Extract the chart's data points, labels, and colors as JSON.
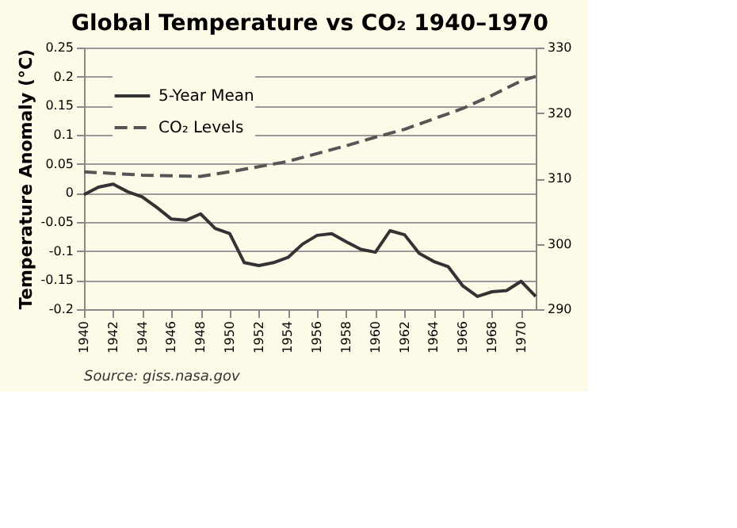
{
  "chart_data": {
    "type": "line",
    "title": "Global Temperature vs CO₂ 1940–1970",
    "ylabel": "Temperature Anomaly (°C)",
    "x": [
      1940,
      1941,
      1942,
      1943,
      1944,
      1945,
      1946,
      1947,
      1948,
      1949,
      1950,
      1951,
      1952,
      1953,
      1954,
      1955,
      1956,
      1957,
      1958,
      1959,
      1960,
      1961,
      1962,
      1963,
      1964,
      1965,
      1966,
      1967,
      1968,
      1969,
      1970,
      1971
    ],
    "series": [
      {
        "name": "5-Year Mean",
        "color": "#333333",
        "line_style": "solid",
        "values": [
          -0.003,
          0.01,
          0.015,
          0.002,
          -0.007,
          -0.025,
          -0.045,
          -0.047,
          -0.036,
          -0.061,
          -0.07,
          -0.12,
          -0.125,
          -0.12,
          -0.111,
          -0.088,
          -0.073,
          -0.07,
          -0.084,
          -0.097,
          -0.102,
          -0.065,
          -0.072,
          -0.104,
          -0.118,
          -0.127,
          -0.16,
          -0.178,
          -0.17,
          -0.168,
          -0.152,
          -0.178
        ]
      },
      {
        "name": "CO₂ Levels",
        "color": "#555555",
        "line_style": "dashed",
        "axis": "y2",
        "x": [
          1940,
          1944,
          1948,
          1950,
          1954,
          1958,
          1960,
          1962,
          1964,
          1966,
          1968,
          1970,
          1971
        ],
        "values": [
          311,
          310.5,
          310.3,
          311,
          312.6,
          315,
          316.3,
          317.5,
          319.1,
          320.7,
          322.7,
          324.9,
          325.6
        ]
      }
    ],
    "xlim": [
      1940,
      1971
    ],
    "xticks": [
      1940,
      1942,
      1944,
      1946,
      1948,
      1950,
      1952,
      1954,
      1956,
      1958,
      1960,
      1962,
      1964,
      1966,
      1968,
      1970
    ],
    "ylim": [
      -0.2,
      0.25
    ],
    "yticks": [
      -0.2,
      -0.15,
      -0.1,
      -0.05,
      0,
      0.05,
      0.1,
      0.15,
      0.2,
      0.25
    ],
    "y2lim": [
      290,
      330
    ],
    "y2ticks": [
      290,
      300,
      310,
      320,
      330
    ],
    "grid": "y",
    "legend": "top left",
    "annotations": [
      "Source: giss.nasa.gov"
    ]
  }
}
